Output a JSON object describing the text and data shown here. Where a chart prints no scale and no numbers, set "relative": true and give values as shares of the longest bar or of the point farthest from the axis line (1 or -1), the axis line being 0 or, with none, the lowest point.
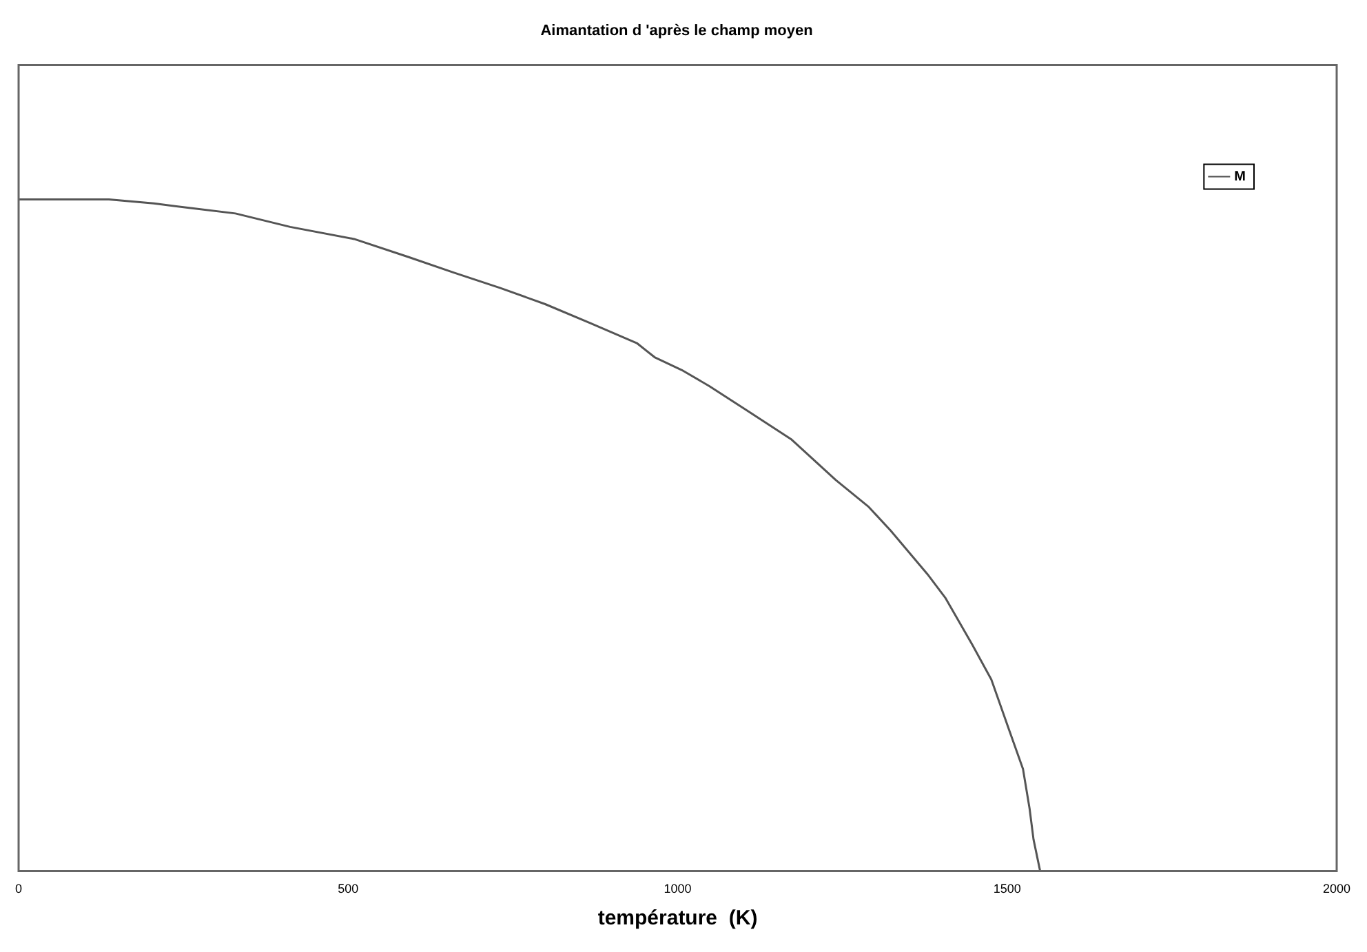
{
  "chart_data": {
    "type": "line",
    "title": "Aimantation d 'après le champ moyen",
    "xlabel": "température  (K)",
    "relative": true,
    "legend": "top right",
    "xlim": [
      0,
      2000
    ],
    "xticks": [
      0,
      500,
      1000,
      1500,
      2000
    ],
    "series": [
      {
        "name": "M",
        "color": "#555555",
        "x": [
          0,
          137,
          205,
          261,
          329,
          412,
          509,
          592,
          660,
          731,
          799,
          867,
          938,
          965,
          1006,
          1048,
          1103,
          1172,
          1240,
          1290,
          1323,
          1379,
          1406,
          1447,
          1476,
          1503,
          1524,
          1534,
          1540,
          1550
        ],
        "values": [
          1,
          1,
          0.994,
          0.987,
          0.979,
          0.959,
          0.941,
          0.914,
          0.891,
          0.868,
          0.844,
          0.816,
          0.786,
          0.765,
          0.746,
          0.722,
          0.687,
          0.643,
          0.582,
          0.542,
          0.507,
          0.442,
          0.407,
          0.337,
          0.285,
          0.21,
          0.152,
          0.093,
          0.047,
          0
        ]
      }
    ]
  }
}
